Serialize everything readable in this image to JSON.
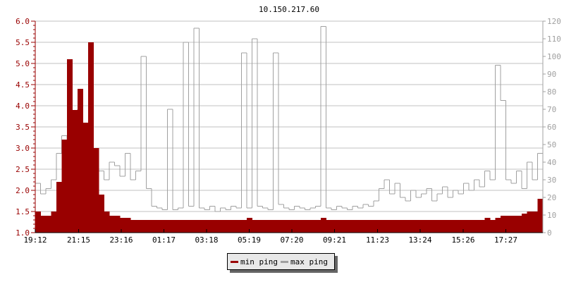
{
  "chart_data": {
    "type": "area",
    "title": "10.150.217.60",
    "colors": {
      "min": "#990000",
      "max": "#a0a0a0",
      "grid": "#c0c0c0"
    },
    "left_axis": {
      "ylim": [
        1.0,
        6.0
      ],
      "ticks": [
        "1.0",
        "1.5",
        "2.0",
        "2.5",
        "3.0",
        "3.5",
        "4.0",
        "4.5",
        "5.0",
        "5.5",
        "6.0"
      ],
      "color": "#990000"
    },
    "right_axis": {
      "ylim": [
        0,
        120
      ],
      "ticks": [
        "0",
        "10",
        "20",
        "30",
        "40",
        "50",
        "60",
        "70",
        "80",
        "90",
        "100",
        "110",
        "120"
      ],
      "color": "#a0a0a0"
    },
    "xticks": [
      "19:12",
      "21:15",
      "23:16",
      "01:17",
      "03:18",
      "05:19",
      "07:20",
      "09:21",
      "11:23",
      "13:24",
      "15:26",
      "17:27"
    ],
    "grid": true,
    "legend_position": "bottom",
    "series": [
      {
        "name": "min ping",
        "axis": "left",
        "values": [
          1.5,
          1.4,
          1.4,
          1.5,
          2.2,
          3.2,
          5.1,
          3.9,
          4.4,
          3.6,
          5.5,
          3.0,
          1.9,
          1.5,
          1.4,
          1.4,
          1.35,
          1.35,
          1.3,
          1.3,
          1.3,
          1.3,
          1.3,
          1.3,
          1.3,
          1.3,
          1.3,
          1.3,
          1.3,
          1.3,
          1.3,
          1.3,
          1.3,
          1.3,
          1.3,
          1.3,
          1.3,
          1.3,
          1.3,
          1.3,
          1.35,
          1.3,
          1.3,
          1.3,
          1.3,
          1.3,
          1.3,
          1.3,
          1.3,
          1.3,
          1.3,
          1.3,
          1.3,
          1.3,
          1.35,
          1.3,
          1.3,
          1.3,
          1.3,
          1.3,
          1.3,
          1.3,
          1.3,
          1.3,
          1.3,
          1.3,
          1.3,
          1.3,
          1.3,
          1.3,
          1.3,
          1.3,
          1.3,
          1.3,
          1.3,
          1.3,
          1.3,
          1.3,
          1.3,
          1.3,
          1.3,
          1.3,
          1.3,
          1.3,
          1.3,
          1.35,
          1.3,
          1.35,
          1.4,
          1.4,
          1.4,
          1.4,
          1.45,
          1.5,
          1.5,
          1.8
        ]
      },
      {
        "name": "max ping",
        "axis": "right",
        "values": [
          28,
          22,
          25,
          30,
          45,
          55,
          40,
          60,
          70,
          58,
          50,
          45,
          35,
          30,
          40,
          38,
          32,
          45,
          30,
          35,
          100,
          25,
          15,
          14,
          13,
          70,
          13,
          14,
          108,
          15,
          116,
          14,
          13,
          15,
          12,
          14,
          13,
          15,
          14,
          102,
          14,
          110,
          15,
          14,
          13,
          102,
          16,
          14,
          13,
          15,
          14,
          13,
          14,
          15,
          117,
          14,
          13,
          15,
          14,
          13,
          15,
          14,
          16,
          15,
          18,
          25,
          30,
          22,
          28,
          20,
          18,
          24,
          20,
          22,
          25,
          18,
          22,
          26,
          20,
          24,
          22,
          28,
          24,
          30,
          26,
          35,
          30,
          95,
          75,
          30,
          28,
          35,
          25,
          40,
          30,
          45
        ]
      }
    ]
  }
}
